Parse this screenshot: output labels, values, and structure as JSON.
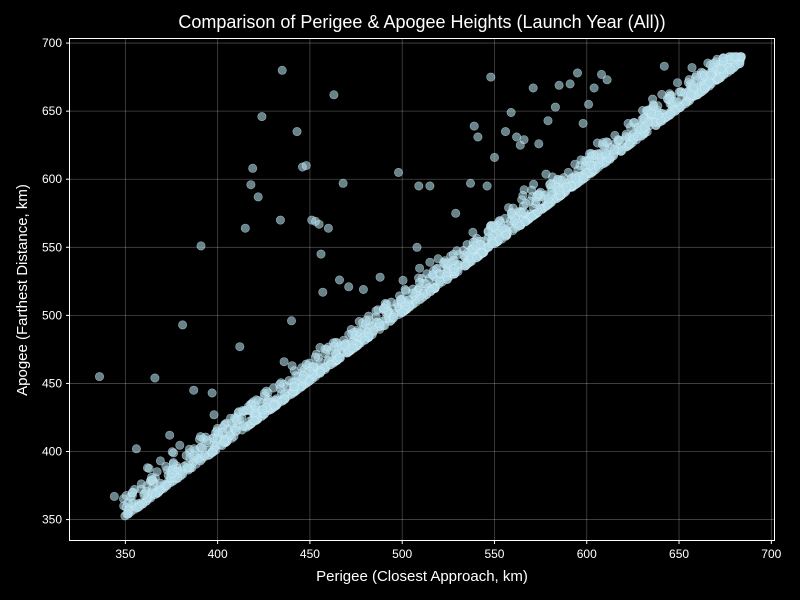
{
  "chart_data": {
    "type": "scatter",
    "title": "Comparison of Perigee & Apogee Heights (Launch Year (All))",
    "xlabel": "Perigee (Closest Approach, km)",
    "ylabel": "Apogee (Farthest Distance, km)",
    "xlim": [
      320,
      702
    ],
    "ylim": [
      335,
      703
    ],
    "xticks": [
      350,
      400,
      450,
      500,
      550,
      600,
      650,
      700
    ],
    "yticks": [
      350,
      400,
      450,
      500,
      550,
      600,
      650,
      700
    ],
    "grid": true,
    "colors": {
      "background": "#000000",
      "text": "#ffffff",
      "point": "#add8e6",
      "point_edge": "#e0f4fa"
    },
    "outliers": [
      {
        "x": 336,
        "y": 455
      },
      {
        "x": 366,
        "y": 454
      },
      {
        "x": 381,
        "y": 493
      },
      {
        "x": 391,
        "y": 551
      },
      {
        "x": 412,
        "y": 477
      },
      {
        "x": 415,
        "y": 564
      },
      {
        "x": 418,
        "y": 596
      },
      {
        "x": 419,
        "y": 608
      },
      {
        "x": 422,
        "y": 587
      },
      {
        "x": 424,
        "y": 646
      },
      {
        "x": 434,
        "y": 570
      },
      {
        "x": 435,
        "y": 680
      },
      {
        "x": 443,
        "y": 635
      },
      {
        "x": 446,
        "y": 609
      },
      {
        "x": 448,
        "y": 610
      },
      {
        "x": 451,
        "y": 570
      },
      {
        "x": 453,
        "y": 569
      },
      {
        "x": 455,
        "y": 567
      },
      {
        "x": 456,
        "y": 545
      },
      {
        "x": 457,
        "y": 517
      },
      {
        "x": 460,
        "y": 564
      },
      {
        "x": 463,
        "y": 662
      },
      {
        "x": 468,
        "y": 597
      },
      {
        "x": 466,
        "y": 526
      },
      {
        "x": 471,
        "y": 521
      },
      {
        "x": 498,
        "y": 605
      },
      {
        "x": 509,
        "y": 595
      },
      {
        "x": 515,
        "y": 595
      },
      {
        "x": 537,
        "y": 597
      },
      {
        "x": 539,
        "y": 639
      },
      {
        "x": 541,
        "y": 631
      },
      {
        "x": 548,
        "y": 675
      },
      {
        "x": 550,
        "y": 616
      },
      {
        "x": 556,
        "y": 635
      },
      {
        "x": 559,
        "y": 649
      },
      {
        "x": 562,
        "y": 631
      },
      {
        "x": 564,
        "y": 625
      },
      {
        "x": 566,
        "y": 629
      },
      {
        "x": 571,
        "y": 667
      },
      {
        "x": 574,
        "y": 626
      },
      {
        "x": 579,
        "y": 643
      },
      {
        "x": 583,
        "y": 653
      },
      {
        "x": 585,
        "y": 669
      },
      {
        "x": 591,
        "y": 670
      },
      {
        "x": 595,
        "y": 678
      },
      {
        "x": 598,
        "y": 641
      },
      {
        "x": 601,
        "y": 655
      },
      {
        "x": 604,
        "y": 667
      },
      {
        "x": 608,
        "y": 677
      },
      {
        "x": 611,
        "y": 673
      },
      {
        "x": 642,
        "y": 683
      },
      {
        "x": 657,
        "y": 682
      },
      {
        "x": 667,
        "y": 684
      },
      {
        "x": 673,
        "y": 681
      },
      {
        "x": 546,
        "y": 595
      },
      {
        "x": 529,
        "y": 575
      },
      {
        "x": 508,
        "y": 550
      },
      {
        "x": 488,
        "y": 528
      },
      {
        "x": 479,
        "y": 519
      },
      {
        "x": 440,
        "y": 496
      },
      {
        "x": 436,
        "y": 466
      },
      {
        "x": 398,
        "y": 427
      },
      {
        "x": 397,
        "y": 443
      },
      {
        "x": 387,
        "y": 445
      },
      {
        "x": 356,
        "y": 402
      },
      {
        "x": 344,
        "y": 367
      },
      {
        "x": 362,
        "y": 388
      },
      {
        "x": 374,
        "y": 412
      }
    ]
  }
}
